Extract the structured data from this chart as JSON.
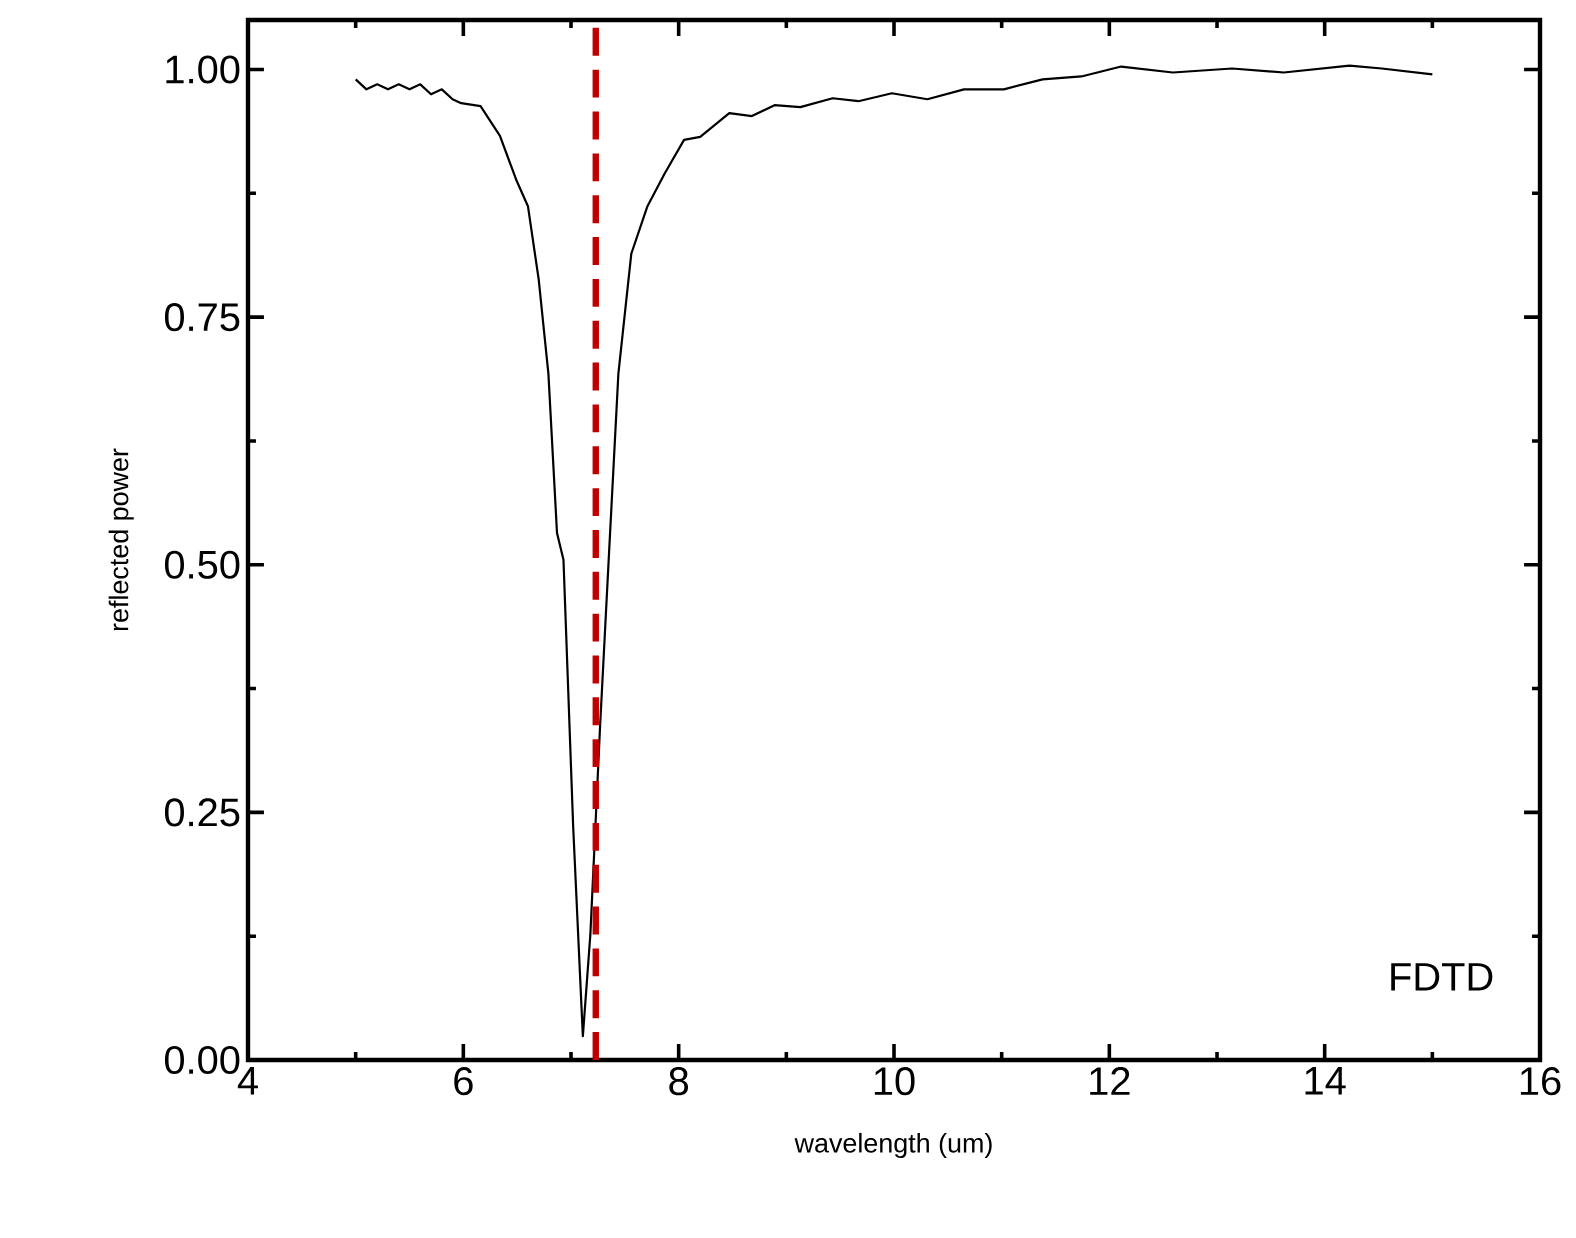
{
  "chart_data": {
    "type": "line",
    "xlabel": "wavelength (um)",
    "ylabel": "reflected power",
    "xlim": [
      4,
      16
    ],
    "xticks": [
      4,
      6,
      8,
      10,
      12,
      14,
      16
    ],
    "ylim": [
      0,
      1.05
    ],
    "yticks": [
      {
        "value": 0,
        "label": "0.00"
      },
      {
        "value": 0.25,
        "label": "0.25"
      },
      {
        "value": 0.5,
        "label": "0.50"
      },
      {
        "value": 0.75,
        "label": "0.75"
      },
      {
        "value": 1,
        "label": "1.00"
      }
    ],
    "grid": false,
    "marker": "none",
    "line_style": "solid",
    "series": [
      {
        "color": "#000000",
        "x": [
          5.0,
          5.1,
          5.2,
          5.3,
          5.4,
          5.5,
          5.6,
          5.7,
          5.8,
          5.9,
          5.98,
          6.16,
          6.34,
          6.49,
          6.6,
          6.7,
          6.79,
          6.87,
          6.93,
          7.02,
          7.11,
          7.18,
          7.27,
          7.35,
          7.44,
          7.56,
          7.71,
          7.87,
          8.05,
          8.2,
          8.47,
          8.68,
          8.89,
          9.13,
          9.43,
          9.67,
          9.98,
          10.31,
          10.65,
          11.02,
          11.38,
          11.74,
          12.11,
          12.59,
          13.14,
          13.62,
          14.23,
          14.53,
          15.0
        ],
        "values": [
          0.99,
          0.98,
          0.985,
          0.98,
          0.985,
          0.98,
          0.985,
          0.975,
          0.98,
          0.97,
          0.966,
          0.963,
          0.933,
          0.889,
          0.862,
          0.788,
          0.693,
          0.532,
          0.505,
          0.236,
          0.024,
          0.127,
          0.337,
          0.505,
          0.693,
          0.814,
          0.862,
          0.895,
          0.929,
          0.932,
          0.956,
          0.953,
          0.964,
          0.962,
          0.971,
          0.968,
          0.976,
          0.97,
          0.98,
          0.98,
          0.99,
          0.993,
          1.003,
          0.997,
          1.001,
          0.997,
          1.004,
          1.001,
          0.995
        ]
      }
    ],
    "ref_lines": [
      {
        "axis": "x",
        "value": 7.23,
        "color": "#c00000",
        "line_style": "dashed"
      }
    ],
    "annotations": [
      "FDTD"
    ]
  }
}
